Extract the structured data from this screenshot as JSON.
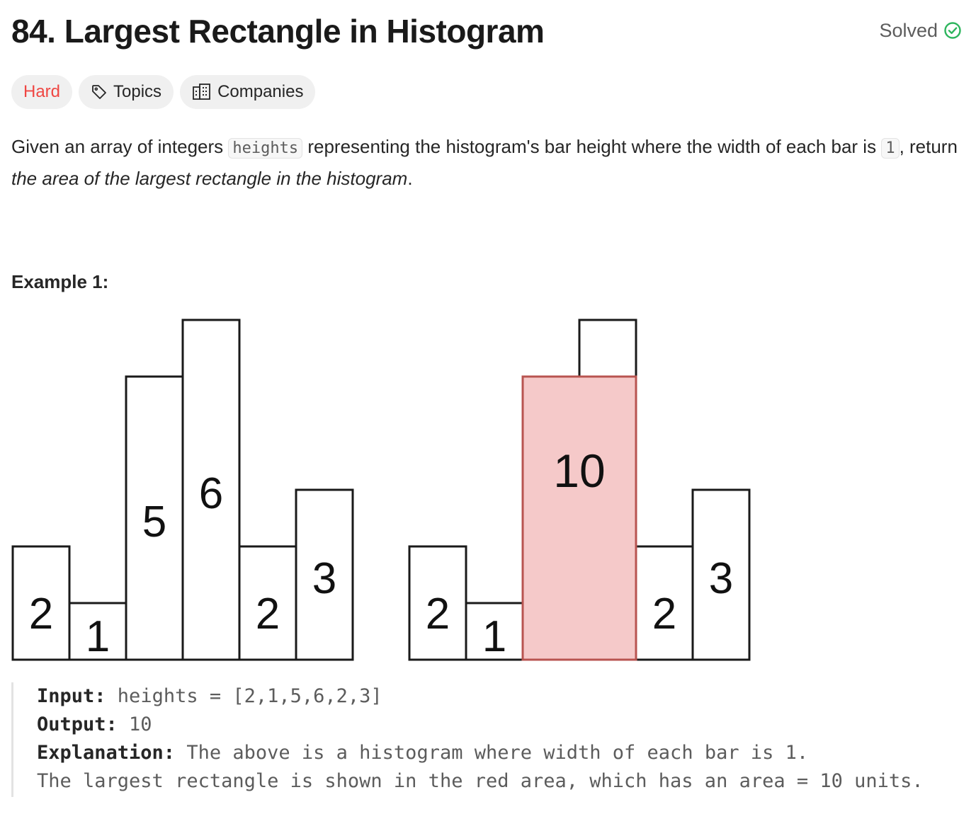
{
  "problem": {
    "title": "84. Largest Rectangle in Histogram",
    "status": "Solved",
    "colors": {
      "difficulty_hard": "#ef4743",
      "solved_check": "#2db55d",
      "highlight_fill": "#f5c9c9",
      "highlight_stroke": "#b85450"
    }
  },
  "tags": {
    "difficulty": "Hard",
    "topics": {
      "label": "Topics",
      "icon": "tag-icon"
    },
    "companies": {
      "label": "Companies",
      "icon": "building-icon"
    }
  },
  "description": {
    "part1": "Given an array of integers ",
    "code1": "heights",
    "part2": " representing the histogram's bar height where the width of each bar is ",
    "code2": "1",
    "part3": ", return ",
    "emphasis": "the area of the largest rectangle in the histogram",
    "part4": "."
  },
  "example": {
    "title": "Example 1:",
    "input_label": "Input:",
    "input_value": " heights = [2,1,5,6,2,3]",
    "output_label": "Output:",
    "output_value": " 10",
    "explanation_label": "Explanation:",
    "explanation_line1": " The above is a histogram where width of each bar is 1.",
    "explanation_line2": "The largest rectangle is shown in the red area, which has an area = 10 units."
  },
  "figure": {
    "heights": [
      2,
      1,
      5,
      6,
      2,
      3
    ],
    "highlight": {
      "start": 2,
      "end": 3,
      "height": 5,
      "label": "10"
    }
  }
}
